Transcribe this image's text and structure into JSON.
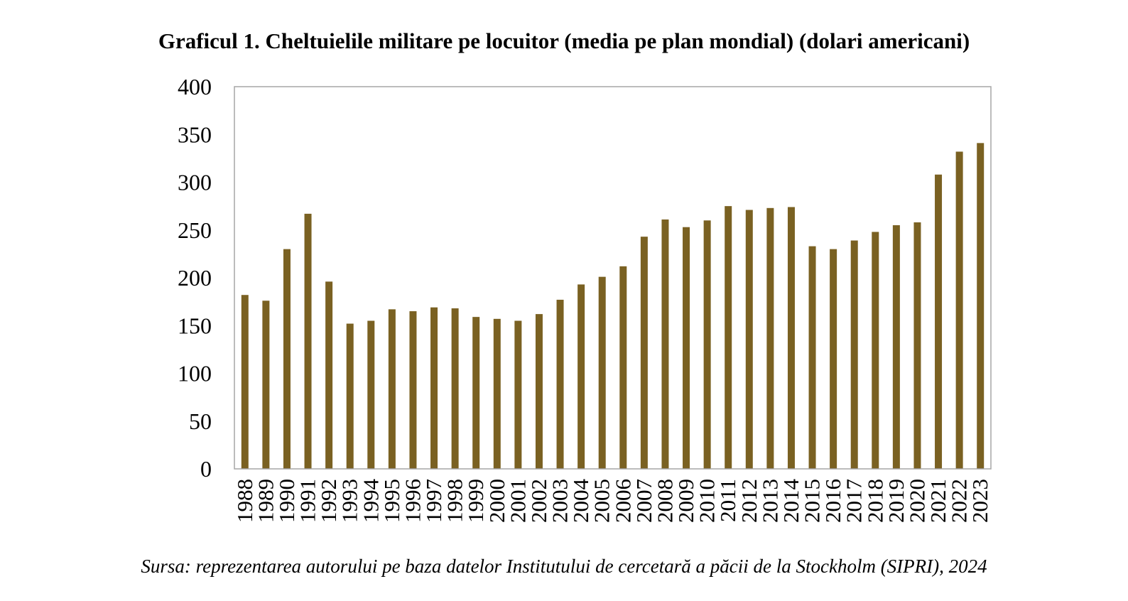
{
  "chart_data": {
    "type": "bar",
    "title": "Graficul 1. Cheltuielile militare pe locuitor (media pe plan mondial) (dolari americani)",
    "xlabel": "",
    "ylabel": "",
    "ylim": [
      0,
      400
    ],
    "yticks": [
      0,
      50,
      100,
      150,
      200,
      250,
      300,
      350,
      400
    ],
    "grid": false,
    "legend": "none",
    "categories": [
      "1988",
      "1989",
      "1990",
      "1991",
      "1992",
      "1993",
      "1994",
      "1995",
      "1996",
      "1997",
      "1998",
      "1999",
      "2000",
      "2001",
      "2002",
      "2003",
      "2004",
      "2005",
      "2006",
      "2007",
      "2008",
      "2009",
      "2010",
      "2011",
      "2012",
      "2013",
      "2014",
      "2015",
      "2016",
      "2017",
      "2018",
      "2019",
      "2020",
      "2021",
      "2022",
      "2023"
    ],
    "values": [
      182,
      176,
      230,
      267,
      196,
      152,
      155,
      167,
      165,
      169,
      168,
      159,
      157,
      155,
      162,
      177,
      193,
      201,
      212,
      243,
      261,
      253,
      260,
      275,
      271,
      273,
      274,
      233,
      230,
      239,
      248,
      255,
      258,
      308,
      332,
      341
    ],
    "bar_color": "#7A6122",
    "frame_color": "#A6A6A6"
  },
  "source": "Sursa: reprezentarea autorului pe baza datelor Institutului de cercetară a păcii de la Stockholm (SIPRI), 2024"
}
